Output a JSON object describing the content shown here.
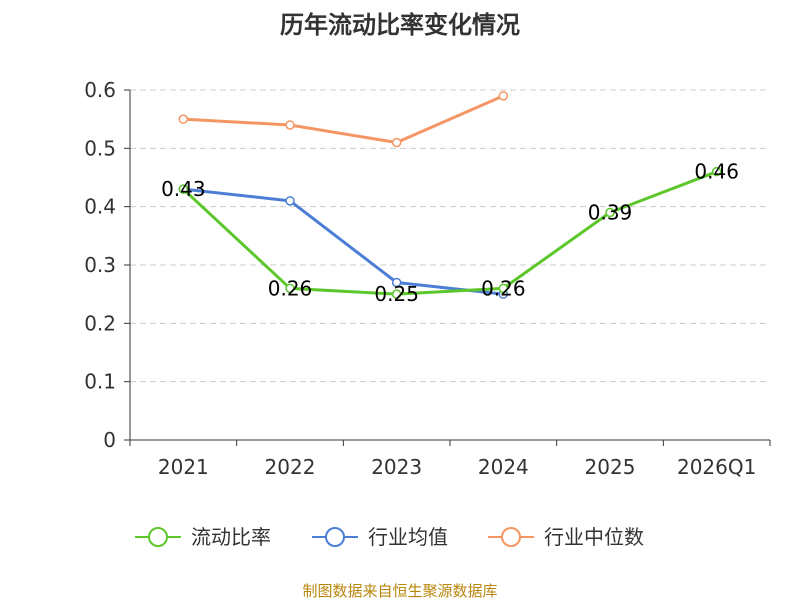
{
  "chart_data": {
    "type": "line",
    "title": "历年流动比率变化情况",
    "categories": [
      "2021",
      "2022",
      "2023",
      "2024",
      "2025",
      "2026Q1"
    ],
    "ylim": [
      0,
      0.6
    ],
    "yticks": [
      "0",
      "0.1",
      "0.2",
      "0.3",
      "0.4",
      "0.5",
      "0.6"
    ],
    "grid": true,
    "legend_position": "bottom",
    "series": [
      {
        "name": "流动比率",
        "color": "#5cc72b",
        "values": [
          0.43,
          0.26,
          0.25,
          0.26,
          0.39,
          0.46
        ],
        "labels": [
          "0.43",
          "0.26",
          "0.25",
          "0.26",
          "0.39",
          "0.46"
        ]
      },
      {
        "name": "行业均值",
        "color": "#4d7ed6",
        "values": [
          0.43,
          0.41,
          0.27,
          0.25,
          null,
          null
        ],
        "labels": []
      },
      {
        "name": "行业中位数",
        "color": "#f59563",
        "values": [
          0.55,
          0.54,
          0.51,
          0.59,
          null,
          null
        ],
        "labels": []
      }
    ],
    "source": "制图数据来自恒生聚源数据库"
  }
}
